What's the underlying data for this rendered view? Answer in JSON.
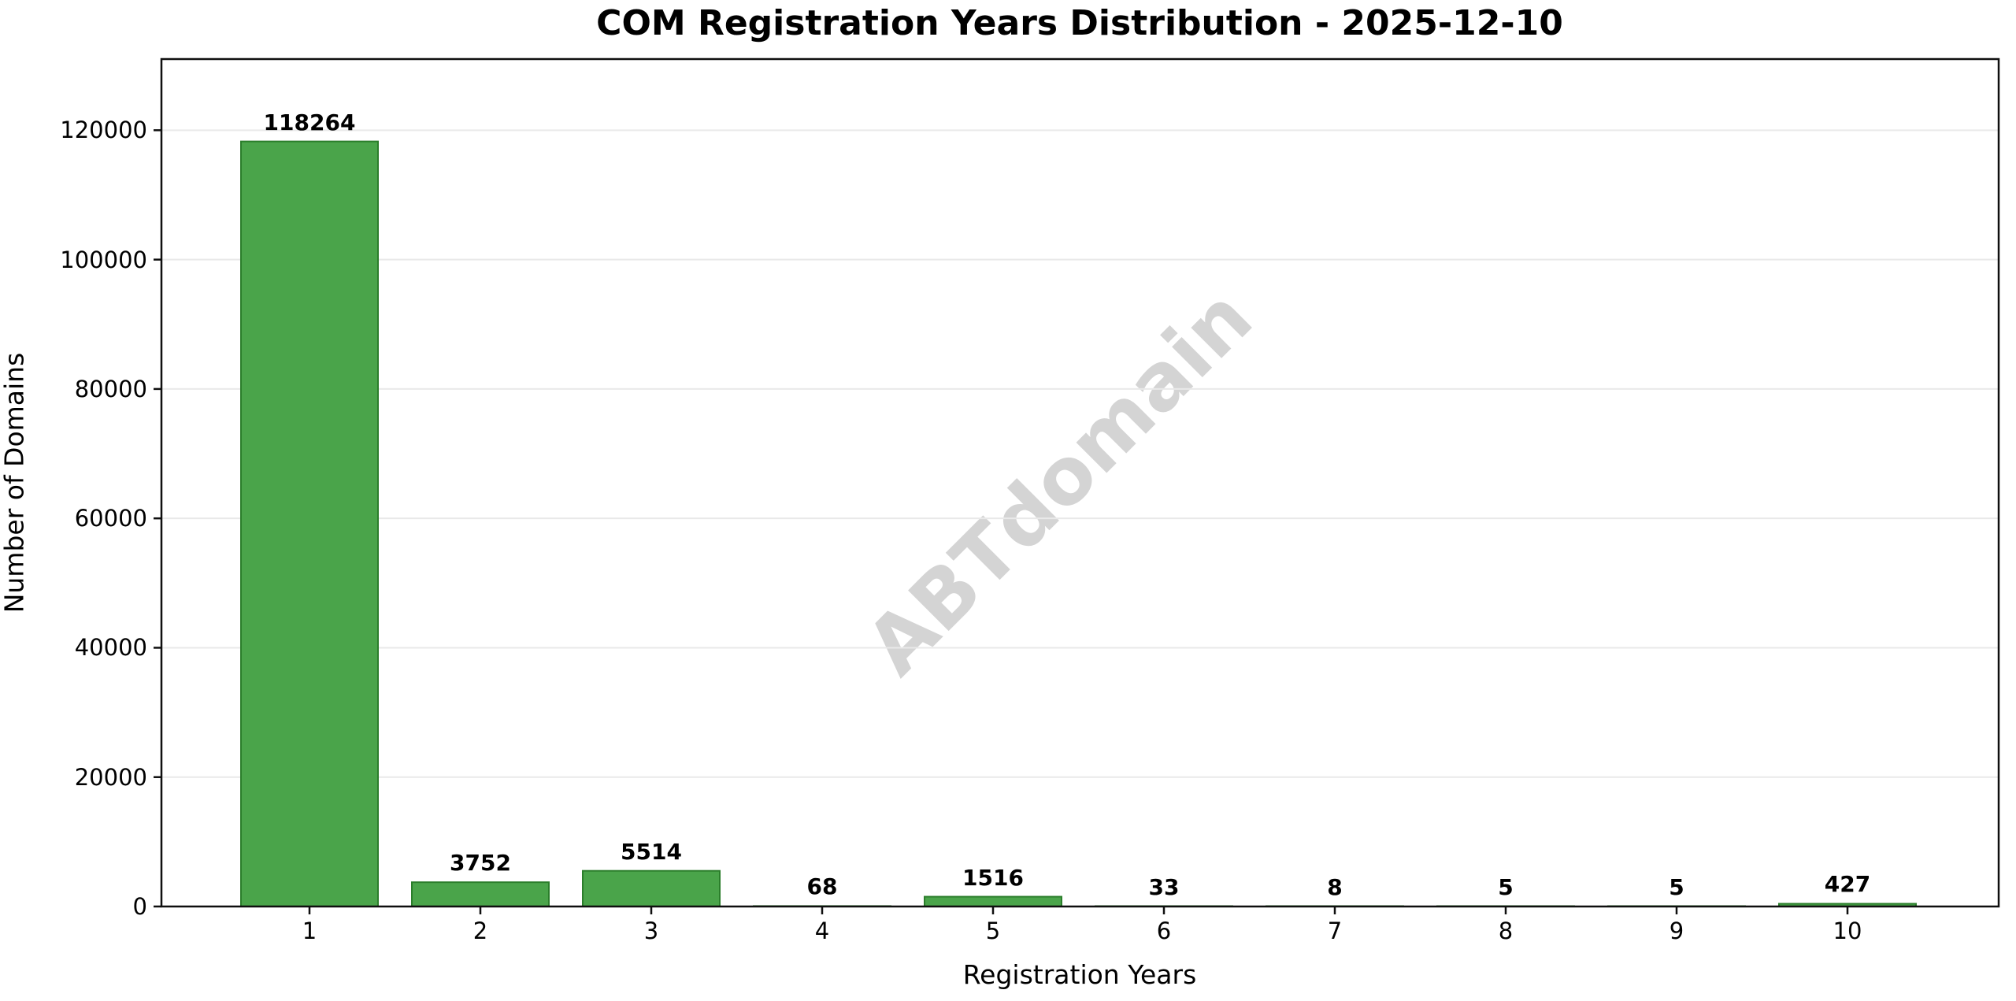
{
  "chart_data": {
    "type": "bar",
    "title": "COM Registration Years Distribution - 2025-12-10",
    "xlabel": "Registration Years",
    "ylabel": "Number of Domains",
    "categories": [
      "1",
      "2",
      "3",
      "4",
      "5",
      "6",
      "7",
      "8",
      "9",
      "10"
    ],
    "values": [
      118264,
      3752,
      5514,
      68,
      1516,
      33,
      8,
      5,
      5,
      427
    ],
    "value_labels": [
      "118264",
      "3752",
      "5514",
      "68",
      "1516",
      "33",
      "8",
      "5",
      "5",
      "427"
    ],
    "yticks": [
      0,
      20000,
      40000,
      60000,
      80000,
      100000,
      120000
    ],
    "ytick_labels": [
      "0",
      "20000",
      "40000",
      "60000",
      "80000",
      "100000",
      "120000"
    ],
    "ylim": [
      0,
      131000
    ],
    "grid": "horizontal",
    "legend": "none",
    "watermark": "ABTdomain",
    "colors": {
      "bar_fill": "#4aa44a",
      "bar_edge": "#2b7e2b",
      "grid": "#e9e9e9",
      "spine": "#0f0f0f",
      "watermark": "#d4d4d4",
      "text": "#000000",
      "background": "#ffffff"
    }
  }
}
